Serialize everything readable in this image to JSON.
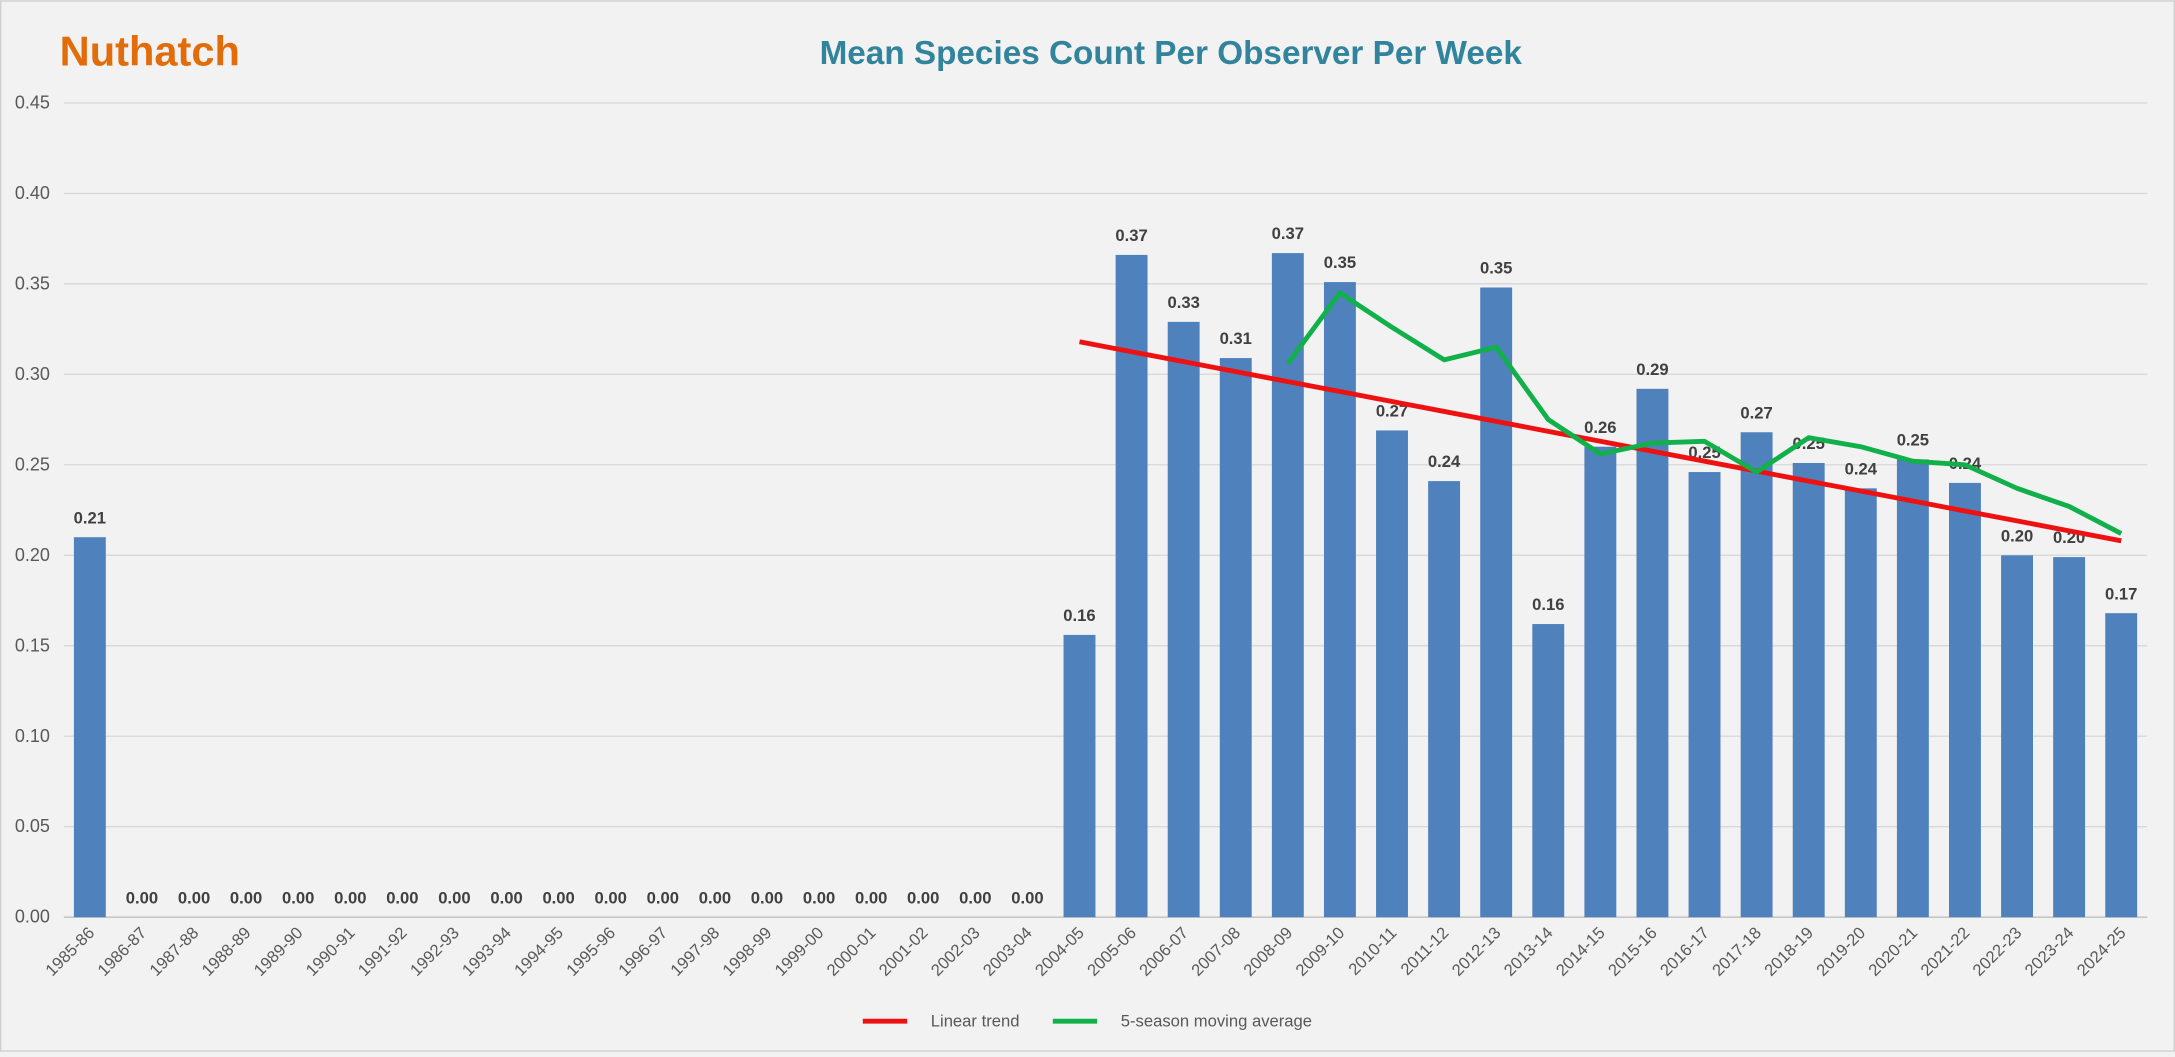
{
  "chart_data": {
    "type": "bar",
    "label": "Nuthatch",
    "title": "Mean Species Count Per Observer Per Week",
    "categories": [
      "1985-86",
      "1986-87",
      "1987-88",
      "1988-89",
      "1989-90",
      "1990-91",
      "1991-92",
      "1992-93",
      "1993-94",
      "1994-95",
      "1995-96",
      "1996-97",
      "1997-98",
      "1998-99",
      "1999-00",
      "2000-01",
      "2001-02",
      "2002-03",
      "2003-04",
      "2004-05",
      "2005-06",
      "2006-07",
      "2007-08",
      "2008-09",
      "2009-10",
      "2010-11",
      "2011-12",
      "2012-13",
      "2013-14",
      "2014-15",
      "2015-16",
      "2016-17",
      "2017-18",
      "2018-19",
      "2019-20",
      "2020-21",
      "2021-22",
      "2022-23",
      "2023-24",
      "2024-25"
    ],
    "values": [
      0.21,
      0,
      0,
      0,
      0,
      0,
      0,
      0,
      0,
      0,
      0,
      0,
      0,
      0,
      0,
      0,
      0,
      0,
      0,
      0.156,
      0.366,
      0.329,
      0.309,
      0.367,
      0.351,
      0.269,
      0.241,
      0.348,
      0.162,
      0.26,
      0.292,
      0.246,
      0.268,
      0.251,
      0.237,
      0.253,
      0.24,
      0.2,
      0.199,
      0.168
    ],
    "value_labels": [
      "0.21",
      "0.00",
      "0.00",
      "0.00",
      "0.00",
      "0.00",
      "0.00",
      "0.00",
      "0.00",
      "0.00",
      "0.00",
      "0.00",
      "0.00",
      "0.00",
      "0.00",
      "0.00",
      "0.00",
      "0.00",
      "0.00",
      "0.16",
      "0.37",
      "0.33",
      "0.31",
      "0.37",
      "0.35",
      "0.27",
      "0.24",
      "0.35",
      "0.16",
      "0.26",
      "0.29",
      "0.25",
      "0.27",
      "0.25",
      "0.24",
      "0.25",
      "0.24",
      "0.20",
      "0.20",
      "0.17"
    ],
    "color": "#4f81bd",
    "series": [
      {
        "name": "Linear trend",
        "type": "line",
        "color": "#ee1111",
        "values": [
          null,
          null,
          null,
          null,
          null,
          null,
          null,
          null,
          null,
          null,
          null,
          null,
          null,
          null,
          null,
          null,
          null,
          null,
          null,
          0.318,
          0.3125,
          0.307,
          0.3015,
          0.296,
          0.2905,
          0.285,
          0.2795,
          0.274,
          0.2685,
          0.263,
          0.2575,
          0.252,
          0.2465,
          0.241,
          0.2355,
          0.23,
          0.2245,
          0.219,
          0.2135,
          0.208
        ]
      },
      {
        "name": "5-season moving average",
        "type": "line",
        "color": "#11b04a",
        "values": [
          null,
          null,
          null,
          null,
          null,
          null,
          null,
          null,
          null,
          null,
          null,
          null,
          null,
          null,
          null,
          null,
          null,
          null,
          null,
          null,
          null,
          null,
          null,
          0.306,
          0.345,
          0.326,
          0.308,
          0.315,
          0.275,
          0.256,
          0.262,
          0.263,
          0.246,
          0.265,
          0.26,
          0.252,
          0.25,
          0.237,
          0.227,
          0.212
        ]
      }
    ],
    "ylim": [
      0,
      0.45
    ],
    "yticks": [
      {
        "value": 0,
        "label": "0.00"
      },
      {
        "value": 0.05,
        "label": "0.05"
      },
      {
        "value": 0.1,
        "label": "0.10"
      },
      {
        "value": 0.15,
        "label": "0.15"
      },
      {
        "value": 0.2,
        "label": "0.20"
      },
      {
        "value": 0.25,
        "label": "0.25"
      },
      {
        "value": 0.3,
        "label": "0.30"
      },
      {
        "value": 0.35,
        "label": "0.35"
      },
      {
        "value": 0.4,
        "label": "0.40"
      },
      {
        "value": 0.45,
        "label": "0.45"
      }
    ],
    "grid": true
  }
}
